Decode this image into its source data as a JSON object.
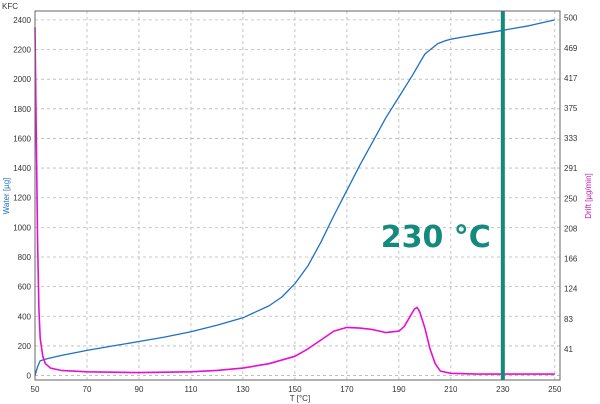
{
  "corner_label": "KFC",
  "chart_data": {
    "type": "line",
    "xlabel": "T [°C]",
    "ylabel_left": "Water [µg]",
    "ylabel_right": "Drift [µg/min]",
    "x_ticks": [
      50,
      70,
      90,
      110,
      130,
      150,
      170,
      190,
      210,
      230,
      250
    ],
    "y_left_ticks": [
      0,
      200,
      400,
      600,
      800,
      1000,
      1200,
      1400,
      1600,
      1800,
      2000,
      2200,
      2400
    ],
    "y_right_ticks": [
      41,
      83,
      124,
      166,
      208,
      250,
      291,
      333,
      375,
      417,
      469,
      500
    ],
    "xlim": [
      50,
      252
    ],
    "ylim_left": [
      -30,
      2460
    ],
    "grid": true,
    "series": [
      {
        "name": "Water [µg]",
        "axis": "left",
        "color": "#1f6fc8",
        "x": [
          50,
          51,
          52,
          55,
          60,
          70,
          80,
          90,
          100,
          110,
          120,
          130,
          140,
          145,
          150,
          155,
          160,
          165,
          170,
          175,
          180,
          185,
          190,
          195,
          200,
          205,
          208,
          210,
          215,
          220,
          230,
          240,
          250
        ],
        "y": [
          0,
          60,
          100,
          115,
          135,
          170,
          200,
          230,
          260,
          295,
          340,
          390,
          470,
          530,
          620,
          740,
          900,
          1080,
          1250,
          1420,
          1580,
          1740,
          1880,
          2020,
          2170,
          2240,
          2260,
          2270,
          2285,
          2300,
          2330,
          2360,
          2400
        ]
      },
      {
        "name": "Drift [µg/min]",
        "axis": "left",
        "color": "#e60fd0",
        "x": [
          50,
          50.5,
          51,
          51.5,
          52,
          53,
          54,
          56,
          60,
          70,
          90,
          110,
          120,
          130,
          140,
          150,
          155,
          160,
          165,
          170,
          175,
          180,
          185,
          190,
          192,
          194,
          196,
          197,
          198,
          200,
          202,
          204,
          206,
          210,
          220,
          230,
          240,
          250
        ],
        "y": [
          2350,
          1600,
          900,
          450,
          250,
          130,
          80,
          50,
          35,
          25,
          20,
          25,
          35,
          50,
          80,
          130,
          180,
          240,
          300,
          325,
          320,
          310,
          290,
          300,
          330,
          390,
          450,
          460,
          430,
          320,
          180,
          80,
          30,
          15,
          10,
          10,
          10,
          10
        ]
      }
    ],
    "vline": {
      "x": 230,
      "label": "230 °C",
      "color": "#14897d"
    }
  }
}
